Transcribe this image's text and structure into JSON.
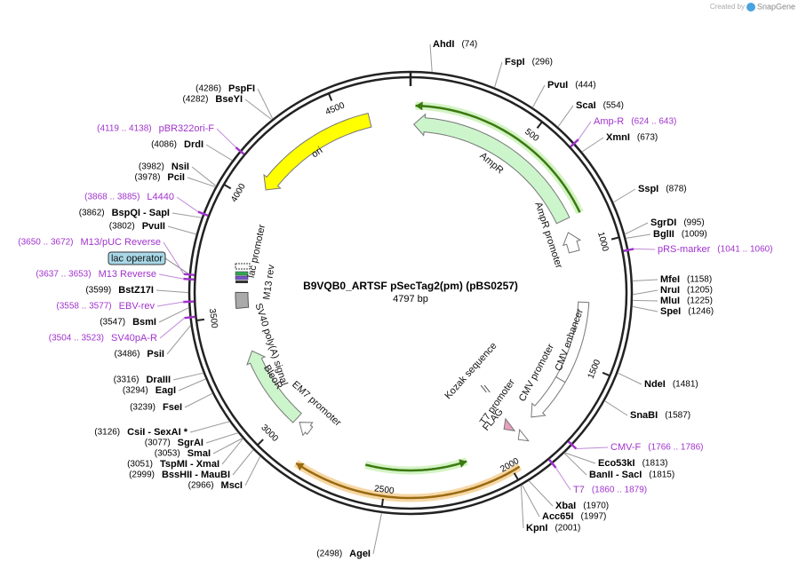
{
  "header": {
    "created_by": "Created by",
    "brand": "SnapGene"
  },
  "title": "B9VQB0_ARTSF pSecTag2(pm) (pBS0257)",
  "length": "4797 bp",
  "ticks": [
    "500",
    "1000",
    "1500",
    "2000",
    "2500",
    "3000",
    "3500",
    "4000",
    "4500"
  ],
  "sites": [
    {
      "name": "AhdI",
      "position": "(74)"
    },
    {
      "name": "FspI",
      "position": "(296)"
    },
    {
      "name": "PvuI",
      "position": "(444)"
    },
    {
      "name": "ScaI",
      "position": "(554)"
    },
    {
      "name": "XmnI",
      "position": "(673)"
    },
    {
      "name": "SspI",
      "position": "(878)"
    },
    {
      "name": "SgrDI",
      "position": "(995)"
    },
    {
      "name": "BglII",
      "position": "(1009)"
    },
    {
      "name": "MfeI",
      "position": "(1158)"
    },
    {
      "name": "NruI",
      "position": "(1205)"
    },
    {
      "name": "MluI",
      "position": "(1225)"
    },
    {
      "name": "SpeI",
      "position": "(1246)"
    },
    {
      "name": "NdeI",
      "position": "(1481)"
    },
    {
      "name": "SnaBI",
      "position": "(1587)"
    },
    {
      "name": "Eco53kI",
      "position": "(1813)"
    },
    {
      "name": "BanII  - SacI",
      "position": "(1815)"
    },
    {
      "name": "XbaI",
      "position": "(1970)"
    },
    {
      "name": "Acc65I",
      "position": "(1997)"
    },
    {
      "name": "KpnI",
      "position": "(2001)"
    },
    {
      "name": "AgeI",
      "position": "(2498)"
    },
    {
      "name": "MscI",
      "position": "(2966)"
    },
    {
      "name": "BssHII  - MauBI",
      "position": "(2999)"
    },
    {
      "name": "TspMI  - XmaI",
      "position": "(3051)"
    },
    {
      "name": "SmaI",
      "position": "(3053)"
    },
    {
      "name": "SgrAI",
      "position": "(3077)"
    },
    {
      "name": "CsiI  - SexAI *",
      "position": "(3126)"
    },
    {
      "name": "FseI",
      "position": "(3239)"
    },
    {
      "name": "EagI",
      "position": "(3294)"
    },
    {
      "name": "DraIII",
      "position": "(3316)"
    },
    {
      "name": "PsiI",
      "position": "(3486)"
    },
    {
      "name": "BsmI",
      "position": "(3547)"
    },
    {
      "name": "BstZ17I",
      "position": "(3599)"
    },
    {
      "name": "PvuII",
      "position": "(3802)"
    },
    {
      "name": "BspQI  - SapI",
      "position": "(3862)"
    },
    {
      "name": "PciI",
      "position": "(3978)"
    },
    {
      "name": "NsiI",
      "position": "(3982)"
    },
    {
      "name": "DrdI",
      "position": "(4086)"
    },
    {
      "name": "BseYI",
      "position": "(4282)"
    },
    {
      "name": "PspFI",
      "position": "(4286)"
    }
  ],
  "primers": [
    {
      "name": "Amp-R",
      "range": "(624 .. 643)"
    },
    {
      "name": "pRS-marker",
      "range": "(1041 .. 1060)"
    },
    {
      "name": "CMV-F",
      "range": "(1766 .. 1786)"
    },
    {
      "name": "T7",
      "range": "(1860 .. 1879)"
    },
    {
      "name": "SV40pA-R",
      "range": "(3504 .. 3523)"
    },
    {
      "name": "EBV-rev",
      "range": "(3558 .. 3577)"
    },
    {
      "name": "M13 Reverse",
      "range": "(3637 .. 3653)"
    },
    {
      "name": "M13/pUC Reverse",
      "range": "(3650 .. 3672)"
    },
    {
      "name": "L4440",
      "range": "(3868 .. 3885)"
    },
    {
      "name": "pBR322ori-F",
      "range": "(4119 .. 4138)"
    }
  ],
  "features": [
    {
      "label": "ori"
    },
    {
      "label": "AmpR"
    },
    {
      "label": "AmpR promoter"
    },
    {
      "label": "CMV enhancer"
    },
    {
      "label": "CMV promoter"
    },
    {
      "label": "Kozak sequence"
    },
    {
      "label": "T7 promoter"
    },
    {
      "label": "FLAG"
    },
    {
      "label": "EM7 promoter"
    },
    {
      "label": "BleoR"
    },
    {
      "label": "SV40 poly(A) signal"
    },
    {
      "label": "lac promoter"
    },
    {
      "label": "M13 rev"
    },
    {
      "label": "lac operator"
    }
  ]
}
